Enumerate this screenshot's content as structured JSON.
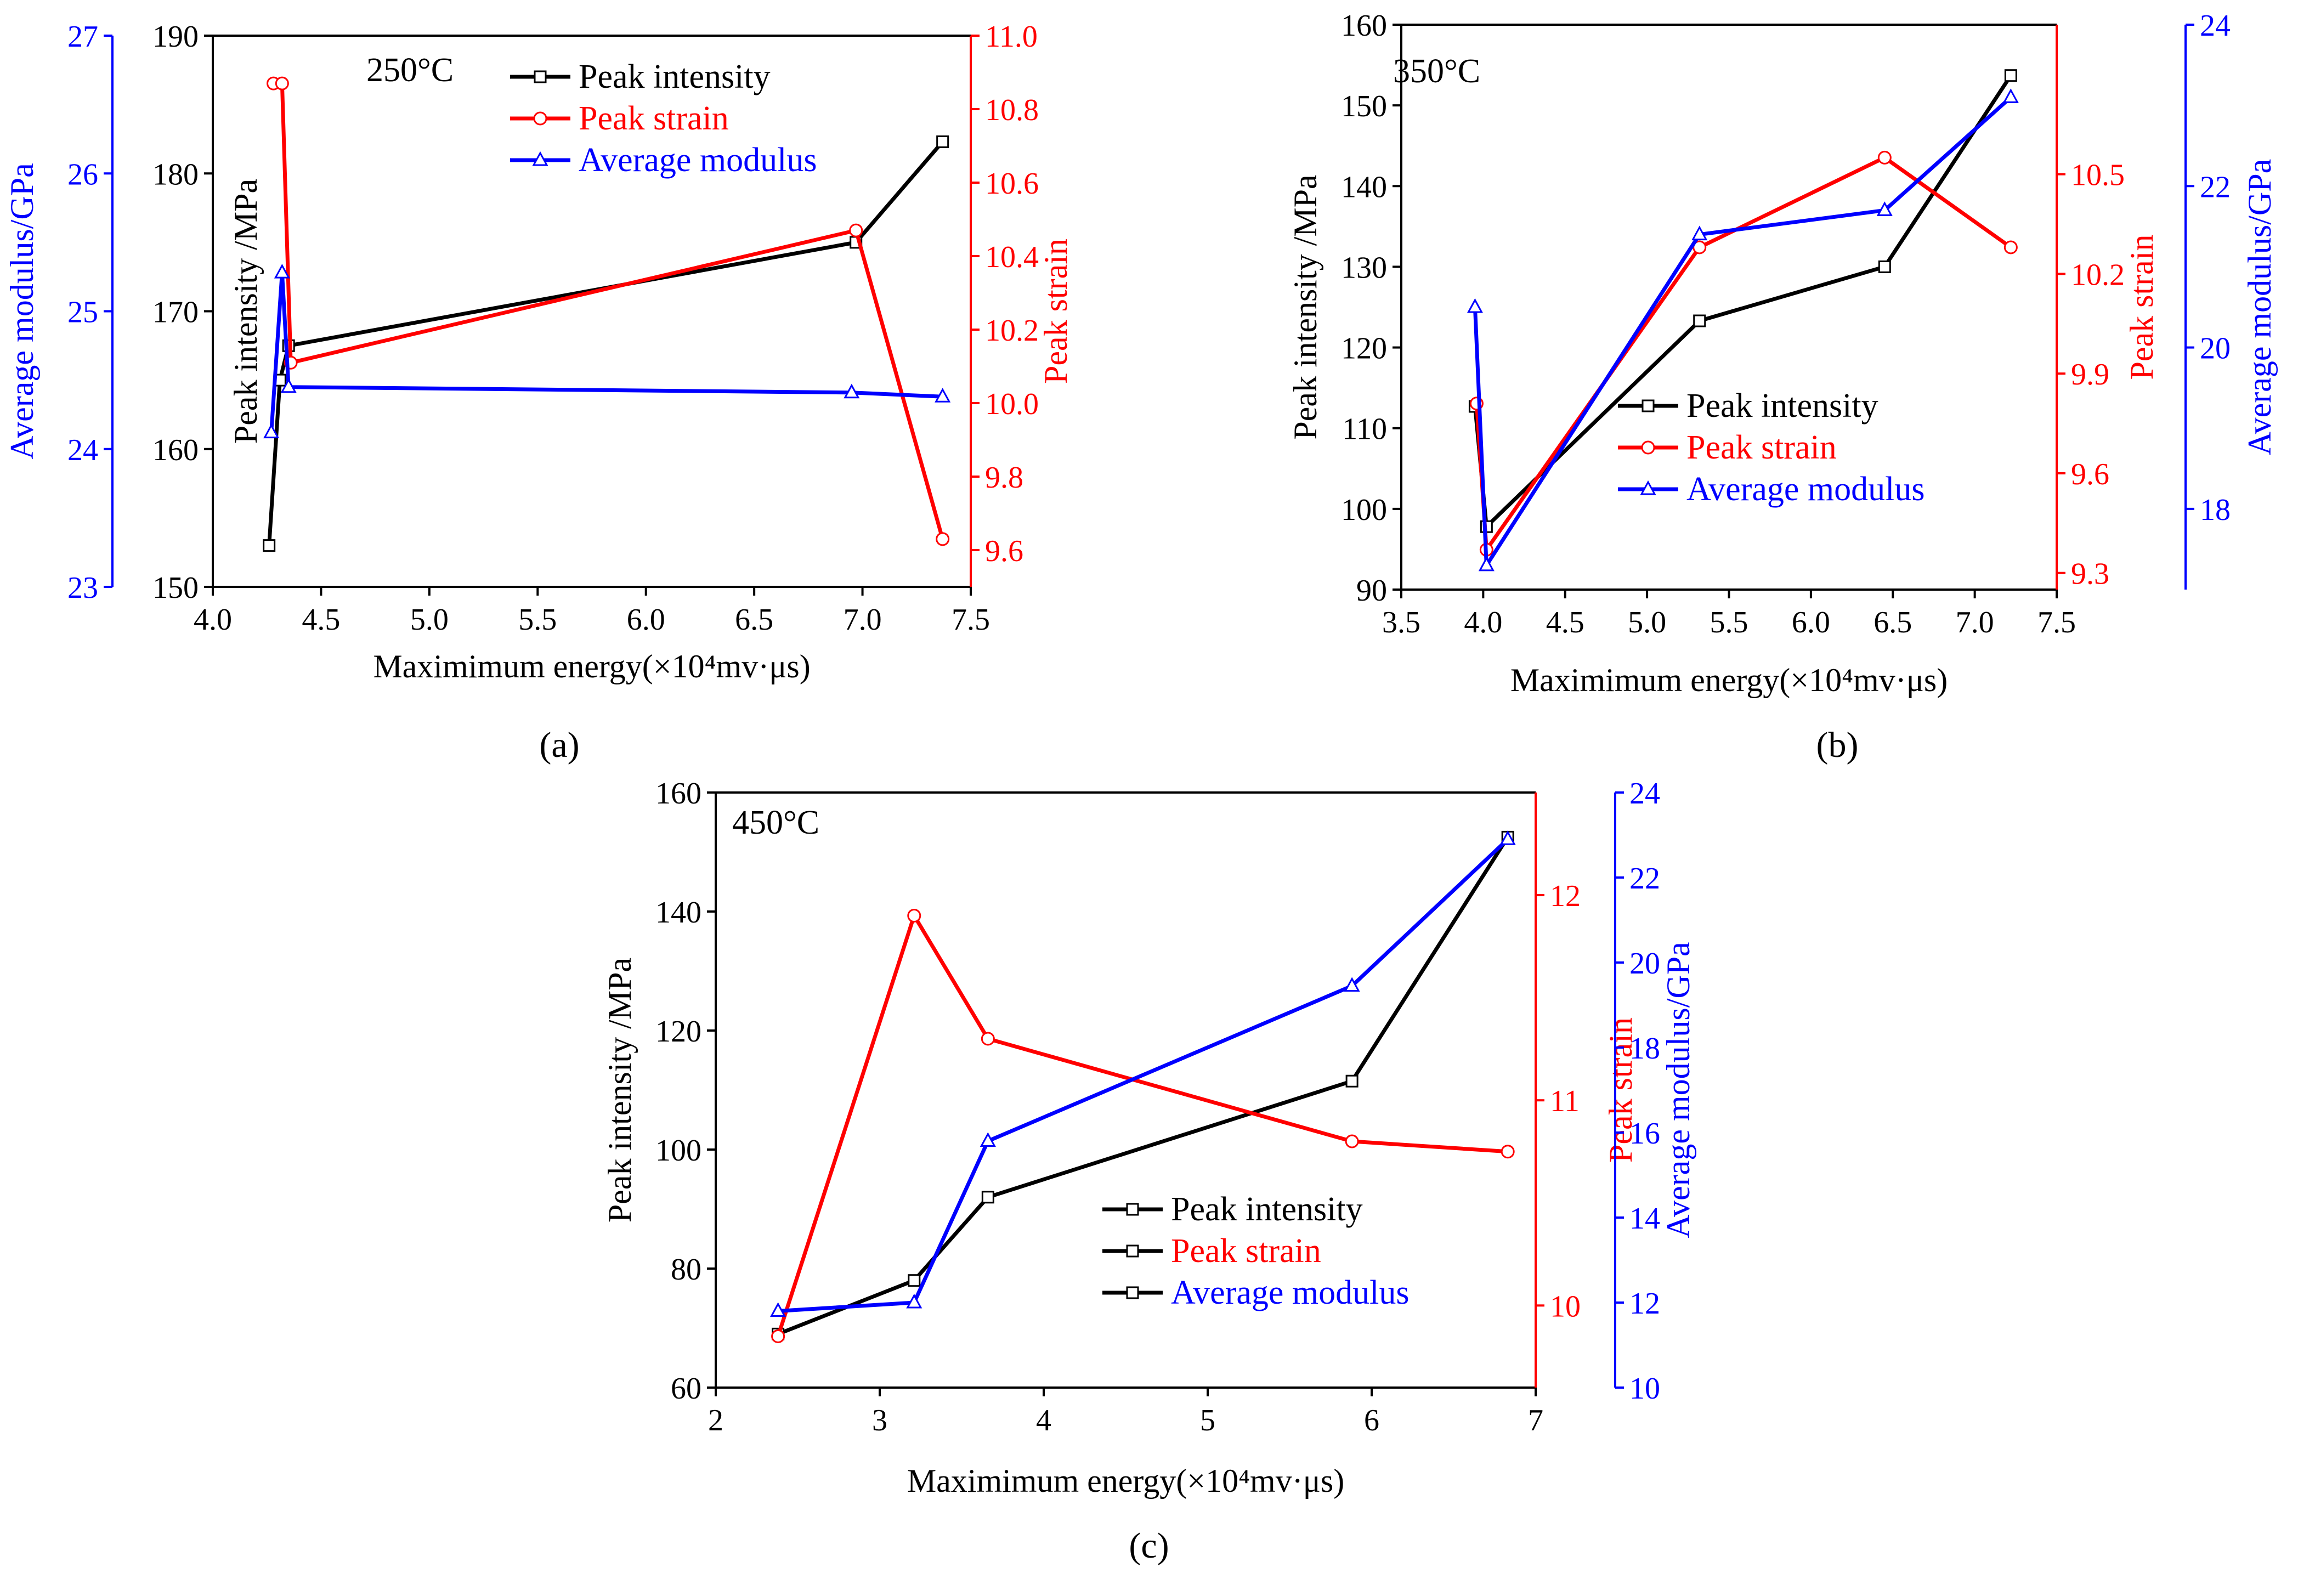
{
  "figure": {
    "panels": [
      "(a)",
      "(b)",
      "(c)"
    ]
  },
  "chart_data": [
    {
      "type": "line",
      "panel_label": "(a)",
      "annotation": "250°C",
      "xlabel": "Maximimum energy(×10⁴mv·μs)",
      "xlim": [
        4.0,
        7.5
      ],
      "xticks": [
        "4.0",
        "4.5",
        "5.0",
        "5.5",
        "6.0",
        "6.5",
        "7.0",
        "7.5"
      ],
      "axes": {
        "left": {
          "label": "Peak intensity /MPa",
          "lim": [
            150,
            190
          ],
          "ticks": [
            "150",
            "160",
            "170",
            "180",
            "190"
          ],
          "color": "#000000"
        },
        "outer_left": {
          "label": "Average modulus/GPa",
          "lim": [
            23,
            27
          ],
          "ticks": [
            "23",
            "24",
            "25",
            "26",
            "27"
          ],
          "color": "#0000ff"
        },
        "right": {
          "label": "Peak strain",
          "lim": [
            9.5,
            11.0
          ],
          "ticks": [
            "9.6",
            "9.8",
            "10.0",
            "10.2",
            "10.4",
            "10.6",
            "10.8",
            "11.0"
          ],
          "color": "#ff0000"
        }
      },
      "series": [
        {
          "name": "Peak intensity",
          "axis": "left",
          "color": "#000000",
          "marker": "square",
          "x": [
            4.26,
            4.31,
            4.35,
            6.97,
            7.37
          ],
          "y": [
            153.0,
            165.0,
            167.5,
            175.0,
            182.3
          ]
        },
        {
          "name": "Peak strain",
          "axis": "right",
          "color": "#ff0000",
          "marker": "circle",
          "x": [
            4.28,
            4.32,
            4.36,
            6.97,
            7.37
          ],
          "y": [
            10.87,
            10.87,
            10.11,
            10.47,
            9.63
          ]
        },
        {
          "name": "Average modulus",
          "axis": "outer_left",
          "color": "#0000ff",
          "marker": "triangle",
          "x": [
            4.27,
            4.32,
            4.35,
            6.95,
            7.37
          ],
          "y": [
            24.12,
            25.28,
            24.45,
            24.41,
            24.38
          ]
        }
      ]
    },
    {
      "type": "line",
      "panel_label": "(b)",
      "annotation": "350°C",
      "xlabel": "Maximimum energy(×10⁴mv·μs)",
      "xlim": [
        3.5,
        7.5
      ],
      "xticks": [
        "3.5",
        "4.0",
        "4.5",
        "5.0",
        "5.5",
        "6.0",
        "6.5",
        "7.0",
        "7.5"
      ],
      "axes": {
        "left": {
          "label": "Peak intensity /MPa",
          "lim": [
            90,
            160
          ],
          "ticks": [
            "90",
            "100",
            "110",
            "120",
            "130",
            "140",
            "150",
            "160"
          ],
          "color": "#000000"
        },
        "right": {
          "label": "Peak strain",
          "lim": [
            9.25,
            10.95
          ],
          "ticks": [
            "9.3",
            "9.6",
            "9.9",
            "10.2",
            "10.5"
          ],
          "color": "#ff0000"
        },
        "outer_right": {
          "label": "Average modulus/GPa",
          "lim": [
            17,
            24
          ],
          "ticks": [
            "18",
            "20",
            "22",
            "24"
          ],
          "color": "#0000ff"
        }
      },
      "series": [
        {
          "name": "Peak intensity",
          "axis": "left",
          "color": "#000000",
          "marker": "square",
          "x": [
            3.95,
            4.02,
            5.32,
            6.45,
            7.22
          ],
          "y": [
            112.7,
            97.8,
            123.3,
            130.0,
            153.7
          ]
        },
        {
          "name": "Peak strain",
          "axis": "right",
          "color": "#ff0000",
          "marker": "circle",
          "x": [
            3.96,
            4.02,
            5.32,
            6.45,
            7.22
          ],
          "y": [
            9.81,
            9.37,
            10.28,
            10.55,
            10.28
          ]
        },
        {
          "name": "Average modulus",
          "axis": "outer_right",
          "color": "#0000ff",
          "marker": "triangle",
          "x": [
            3.95,
            4.02,
            5.32,
            6.45,
            7.22
          ],
          "y": [
            20.5,
            17.3,
            21.4,
            21.7,
            23.1
          ]
        }
      ]
    },
    {
      "type": "line",
      "panel_label": "(c)",
      "annotation": "450°C",
      "xlabel": "Maximimum energy(×10⁴mv·μs)",
      "xlim": [
        2,
        7
      ],
      "xticks": [
        "2",
        "3",
        "4",
        "5",
        "6",
        "7"
      ],
      "axes": {
        "left": {
          "label": "Peak intensity /MPa",
          "lim": [
            60,
            160
          ],
          "ticks": [
            "60",
            "80",
            "100",
            "120",
            "140",
            "160"
          ],
          "color": "#000000"
        },
        "right": {
          "label": "Peak strain",
          "lim": [
            9.6,
            12.5
          ],
          "ticks": [
            "10",
            "11",
            "12"
          ],
          "color": "#ff0000"
        },
        "outer_right": {
          "label": "Average modulus/GPa",
          "lim": [
            10,
            24
          ],
          "ticks": [
            "10",
            "12",
            "14",
            "16",
            "18",
            "20",
            "22",
            "24"
          ],
          "color": "#0000ff"
        }
      },
      "series": [
        {
          "name": "Peak intensity",
          "axis": "left",
          "color": "#000000",
          "marker": "square",
          "x": [
            2.38,
            3.21,
            3.66,
            5.88,
            6.83
          ],
          "y": [
            69.0,
            78.0,
            92.0,
            111.5,
            152.5
          ]
        },
        {
          "name": "Peak strain",
          "axis": "right",
          "color": "#ff0000",
          "marker": "circle",
          "x": [
            2.38,
            3.21,
            3.66,
            5.88,
            6.83
          ],
          "y": [
            9.85,
            11.9,
            11.3,
            10.8,
            10.75
          ]
        },
        {
          "name": "Average modulus",
          "axis": "outer_right",
          "color": "#0000ff",
          "marker": "triangle",
          "x": [
            2.38,
            3.21,
            3.66,
            5.88,
            6.83
          ],
          "y": [
            11.8,
            12.0,
            15.8,
            19.45,
            22.9
          ]
        }
      ],
      "legend_note": "Legend line and markers drawn black with square markers in the original"
    }
  ]
}
